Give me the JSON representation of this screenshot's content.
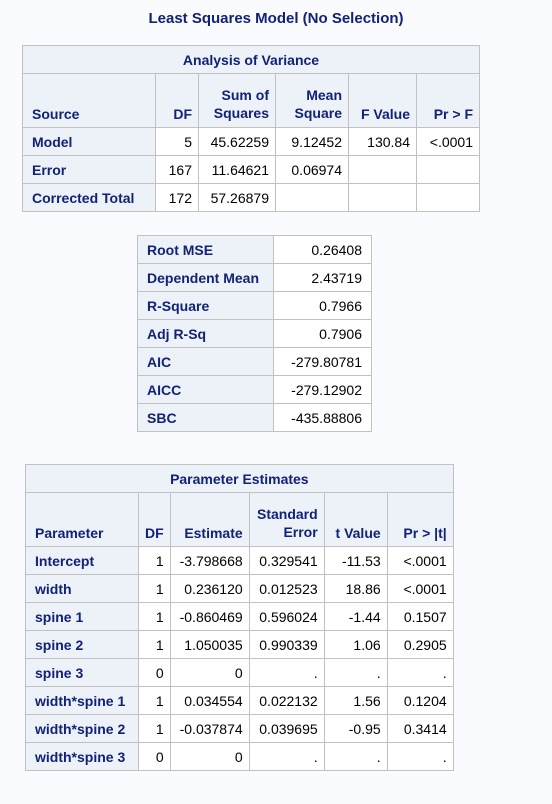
{
  "title": "Least Squares Model (No Selection)",
  "anova": {
    "caption": "Analysis of Variance",
    "headers": [
      "Source",
      "DF",
      "Sum of Squares",
      "Mean Square",
      "F Value",
      "Pr > F"
    ],
    "rows": [
      {
        "source": "Model",
        "df": "5",
        "ss": "45.62259",
        "ms": "9.12452",
        "f": "130.84",
        "p": "<.0001"
      },
      {
        "source": "Error",
        "df": "167",
        "ss": "11.64621",
        "ms": "0.06974",
        "f": "",
        "p": ""
      },
      {
        "source": "Corrected Total",
        "df": "172",
        "ss": "57.26879",
        "ms": "",
        "f": "",
        "p": ""
      }
    ]
  },
  "fit_stats": [
    {
      "label": "Root MSE",
      "value": "0.26408"
    },
    {
      "label": "Dependent Mean",
      "value": "2.43719"
    },
    {
      "label": "R-Square",
      "value": "0.7966"
    },
    {
      "label": "Adj R-Sq",
      "value": "0.7906"
    },
    {
      "label": "AIC",
      "value": "-279.80781"
    },
    {
      "label": "AICC",
      "value": "-279.12902"
    },
    {
      "label": "SBC",
      "value": "-435.88806"
    }
  ],
  "params": {
    "caption": "Parameter Estimates",
    "headers": [
      "Parameter",
      "DF",
      "Estimate",
      "Standard Error",
      "t Value",
      "Pr > |t|"
    ],
    "rows": [
      {
        "name": "Intercept",
        "df": "1",
        "est": "-3.798668",
        "se": "0.329541",
        "t": "-11.53",
        "p": "<.0001"
      },
      {
        "name": "width",
        "df": "1",
        "est": "0.236120",
        "se": "0.012523",
        "t": "18.86",
        "p": "<.0001"
      },
      {
        "name": "spine 1",
        "df": "1",
        "est": "-0.860469",
        "se": "0.596024",
        "t": "-1.44",
        "p": "0.1507"
      },
      {
        "name": "spine 2",
        "df": "1",
        "est": "1.050035",
        "se": "0.990339",
        "t": "1.06",
        "p": "0.2905"
      },
      {
        "name": "spine 3",
        "df": "0",
        "est": "0",
        "se": ".",
        "t": ".",
        "p": "."
      },
      {
        "name": "width*spine 1",
        "df": "1",
        "est": "0.034554",
        "se": "0.022132",
        "t": "1.56",
        "p": "0.1204"
      },
      {
        "name": "width*spine 2",
        "df": "1",
        "est": "-0.037874",
        "se": "0.039695",
        "t": "-0.95",
        "p": "0.3414"
      },
      {
        "name": "width*spine 3",
        "df": "0",
        "est": "0",
        "se": ".",
        "t": ".",
        "p": "."
      }
    ]
  }
}
